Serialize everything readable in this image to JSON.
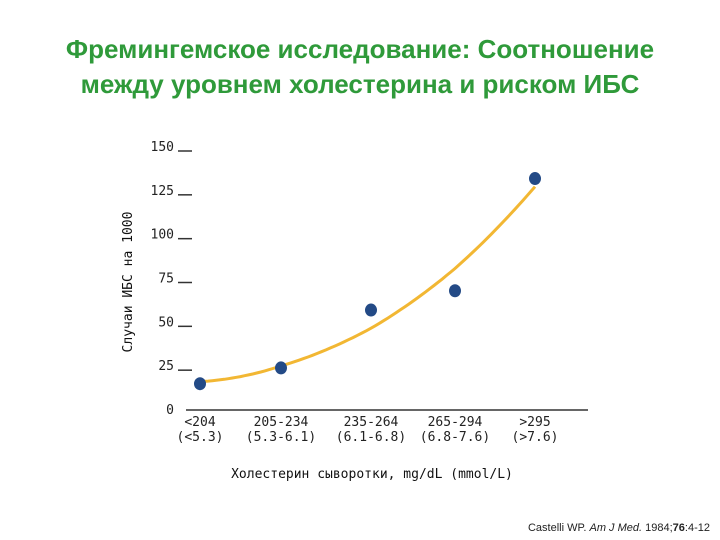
{
  "title_lines": [
    "Фремингемское исследование: Соотношение",
    "между уровнем холестерина и риском ИБС"
  ],
  "chart_data": {
    "type": "scatter",
    "title": "Фремингемское исследование: Соотношение между уровнем холестерина и риском ИБС",
    "xlabel": "Холестерин сыворотки, mg/dL (mmol/L)",
    "ylabel": "Случаи ИБС на 1000",
    "categories": [
      [
        "<204",
        "(<5.3)"
      ],
      [
        "205-234",
        "(5.3-6.1)"
      ],
      [
        "235-264",
        "(6.1-6.8)"
      ],
      [
        "265-294",
        "(6.8-7.6)"
      ],
      [
        ">295",
        "(>7.6)"
      ]
    ],
    "series": [
      {
        "values": [
          15,
          24,
          57,
          68,
          132
        ]
      }
    ],
    "trend_line": "quadratic fit through the points",
    "yticks": [
      0,
      25,
      50,
      75,
      100,
      125,
      150
    ],
    "ylim": [
      0,
      150
    ],
    "grid": false,
    "legend": "none",
    "colors": {
      "points": "#234a86",
      "trend": "#f2b733",
      "axis": "#333333"
    }
  },
  "citation": {
    "author": "Castelli WP.",
    "journal": "Am J Med.",
    "year": "1984;",
    "volume": "76",
    "pages": ":4-12"
  }
}
